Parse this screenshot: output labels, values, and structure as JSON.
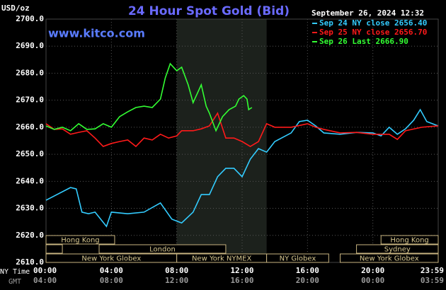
{
  "chart_data": {
    "type": "line",
    "title": "24 Hour Spot Gold (Bid)",
    "watermark": "www.kitco.com",
    "y_label": "USD/oz",
    "timestamp": "September 26, 2024 12:32",
    "x_row_labels": [
      "NY Time",
      "GMT"
    ],
    "ylim": [
      2610,
      2700
    ],
    "yticks": [
      {
        "value": 2610,
        "label": "2610.0"
      },
      {
        "value": 2620,
        "label": "2620.0"
      },
      {
        "value": 2630,
        "label": "2630.0"
      },
      {
        "value": 2640,
        "label": "2640.0"
      },
      {
        "value": 2650,
        "label": "2650.0"
      },
      {
        "value": 2660,
        "label": "2660.0"
      },
      {
        "value": 2670,
        "label": "2670.0"
      },
      {
        "value": 2680,
        "label": "2680.0"
      },
      {
        "value": 2690,
        "label": "2690.0"
      },
      {
        "value": 2700,
        "label": "2700.0"
      }
    ],
    "xlim": [
      0,
      24
    ],
    "xticks": [
      {
        "value": 0,
        "label": "00:00"
      },
      {
        "value": 4,
        "label": "04:00"
      },
      {
        "value": 8,
        "label": "08:00"
      },
      {
        "value": 12,
        "label": "12:00"
      },
      {
        "value": 16,
        "label": "16:00"
      },
      {
        "value": 20,
        "label": "20:00"
      },
      {
        "value": 24,
        "label": "23:59"
      }
    ],
    "x2ticks": [
      {
        "value": 0,
        "label": "04:00"
      },
      {
        "value": 4,
        "label": "08:00"
      },
      {
        "value": 8,
        "label": "12:00"
      },
      {
        "value": 12,
        "label": "16:00"
      },
      {
        "value": 16,
        "label": "20:00"
      },
      {
        "value": 20,
        "label": "00:00"
      },
      {
        "value": 24,
        "label": "03:59"
      }
    ],
    "grid": true,
    "shaded_region": [
      8,
      13.5
    ],
    "sessions": [
      {
        "label": "Hong Kong",
        "row": 0,
        "start": 0,
        "end": 4.2
      },
      {
        "label": "Hong Kong",
        "row": 0,
        "start": 20.5,
        "end": 24
      },
      {
        "label": null,
        "row": 1,
        "start": 0,
        "end": 1
      },
      {
        "label": "London",
        "row": 1,
        "start": 3.25,
        "end": 11
      },
      {
        "label": "Sydney",
        "row": 1,
        "start": 19,
        "end": 24
      },
      {
        "label": "New York Globex",
        "row": 2,
        "start": 0,
        "end": 8
      },
      {
        "label": "New York NYMEX",
        "row": 2,
        "start": 8,
        "end": 13.5
      },
      {
        "label": "NY Globex",
        "row": 2,
        "start": 13.5,
        "end": 17.3
      },
      {
        "label": "New York Globex",
        "row": 2,
        "start": 18,
        "end": 24
      }
    ],
    "series": [
      {
        "name": "Sep 24 NY close 2656.40",
        "color": "#33ccff",
        "x": [
          0,
          1.5,
          1.85,
          2.2,
          2.6,
          3,
          3.7,
          4,
          5,
          6,
          7,
          7.7,
          8.3,
          9,
          9.5,
          10,
          10.5,
          11,
          11.5,
          12,
          12.5,
          13,
          13.5,
          14,
          15,
          15.5,
          16,
          16.5,
          17,
          18,
          19,
          20,
          20.5,
          21,
          21.5,
          22,
          22.5,
          22.9,
          23.3,
          24
        ],
        "values": [
          2633.0,
          2637.7,
          2637.2,
          2628.6,
          2628.0,
          2628.6,
          2623.3,
          2628.6,
          2628.0,
          2628.6,
          2632.0,
          2626.0,
          2624.6,
          2628.6,
          2635.1,
          2635.1,
          2641.7,
          2644.8,
          2644.8,
          2641.7,
          2648.2,
          2652.1,
          2650.8,
          2654.7,
          2657.9,
          2662.1,
          2662.6,
          2660.5,
          2657.9,
          2657.4,
          2658.1,
          2657.9,
          2656.8,
          2660.0,
          2657.4,
          2659.4,
          2662.6,
          2666.5,
          2662.1,
          2660.5
        ]
      },
      {
        "name": "Sep 25 NY close 2656.70",
        "color": "#ff1a1a",
        "x": [
          0,
          0.5,
          1,
          1.5,
          2,
          2.5,
          3,
          3.5,
          4,
          4.5,
          5,
          5.5,
          6,
          6.5,
          7,
          7.5,
          8,
          8.3,
          9,
          9.5,
          10,
          10.5,
          11,
          11.5,
          12,
          12.5,
          13,
          13.5,
          14,
          15,
          16,
          16.5,
          17,
          18,
          19,
          20,
          21,
          21.5,
          22,
          23,
          24
        ],
        "values": [
          2661.3,
          2659.2,
          2659.4,
          2657.4,
          2658.1,
          2658.7,
          2656.0,
          2652.9,
          2654.0,
          2654.7,
          2655.3,
          2652.9,
          2656.0,
          2655.3,
          2657.4,
          2656.0,
          2656.8,
          2658.7,
          2658.7,
          2659.4,
          2660.5,
          2665.2,
          2656.0,
          2656.0,
          2654.7,
          2652.9,
          2654.7,
          2661.3,
          2660.0,
          2660.0,
          2661.3,
          2660.0,
          2659.2,
          2657.9,
          2658.1,
          2657.4,
          2657.4,
          2655.5,
          2658.7,
          2660.0,
          2660.5
        ]
      },
      {
        "name": "Sep 26 Last 2666.90",
        "color": "#33ff33",
        "x": [
          0,
          0.5,
          1,
          1.5,
          2,
          2.5,
          3,
          3.5,
          4,
          4.5,
          5,
          5.5,
          6,
          6.5,
          7,
          7.3,
          7.6,
          8,
          8.3,
          8.7,
          9,
          9.5,
          9.8,
          10,
          10.4,
          10.8,
          11.2,
          11.6,
          11.8,
          12.1,
          12.3,
          12.4,
          12.6
        ],
        "values": [
          2660.5,
          2659.2,
          2660.0,
          2658.7,
          2661.3,
          2659.2,
          2659.4,
          2661.3,
          2660.0,
          2663.9,
          2665.7,
          2667.3,
          2667.8,
          2667.3,
          2670.4,
          2678.3,
          2683.5,
          2680.9,
          2682.2,
          2675.7,
          2669.1,
          2675.7,
          2667.8,
          2665.2,
          2658.7,
          2663.9,
          2666.5,
          2667.8,
          2670.4,
          2671.7,
          2670.4,
          2666.5,
          2667.3
        ]
      }
    ]
  }
}
